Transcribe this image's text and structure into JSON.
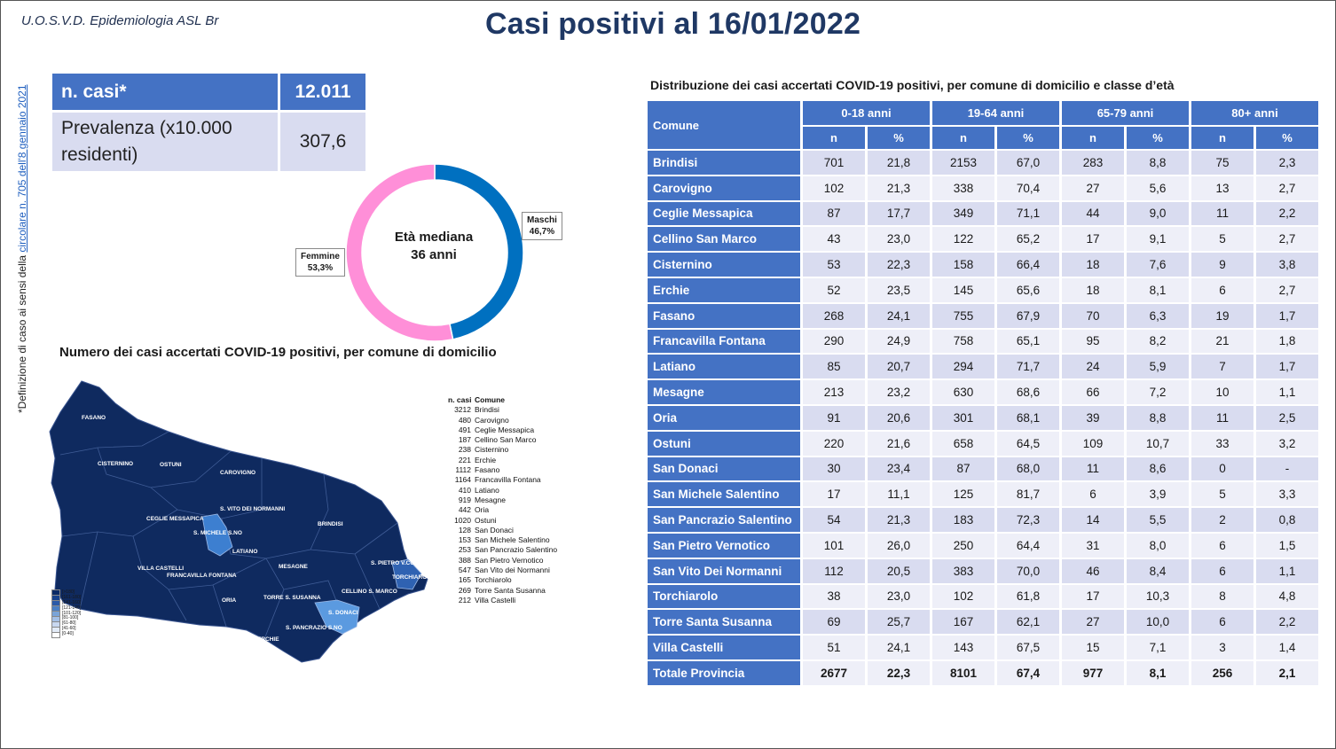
{
  "header": {
    "department": "U.O.S.V.D. Epidemiologia ASL Br",
    "title": "Casi positivi al 16/01/2022"
  },
  "side_note": {
    "prefix": "*Definizione di caso ai sensi della ",
    "link": "circolare n. 705 dell'8 gennaio 2021"
  },
  "kpi": {
    "cases_label": "n. casi*",
    "cases_value": "12.011",
    "prev_label": "Prevalenza (x10.000 residenti)",
    "prev_value": "307,6"
  },
  "donut": {
    "center_line1": "Età mediana",
    "center_line2": "36 anni",
    "slices": [
      {
        "label": "Maschi",
        "pct_text": "46,7%",
        "value": 46.7,
        "color": "#0070c0"
      },
      {
        "label": "Femmine",
        "pct_text": "53,3%",
        "value": 53.3,
        "color": "#ff8fd8"
      }
    ]
  },
  "map": {
    "title": "Numero dei casi accertati COVID-19 positivi, per comune di domicilio",
    "labels": [
      "FASANO",
      "CISTERNINO",
      "OSTUNI",
      "CAROVIGNO",
      "CEGLIE MESSAPICA",
      "S. VITO DEI NORMANNI",
      "S. MICHELE S.NO",
      "LATIANO",
      "BRINDISI",
      "VILLA CASTELLI",
      "FRANCAVILLA FONTANA",
      "MESAGNE",
      "S. PIETRO V.CO",
      "TORCHIAROLO",
      "ORIA",
      "TORRE S. SUSANNA",
      "CELLINO S. MARCO",
      "S. DONACI",
      "S. PANCRAZIO S.NO",
      "ERCHIE"
    ],
    "legend_header": {
      "n": "n. casi",
      "name": "Comune"
    },
    "legend": [
      {
        "n": "3212",
        "name": "Brindisi"
      },
      {
        "n": "480",
        "name": "Carovigno"
      },
      {
        "n": "491",
        "name": "Ceglie Messapica"
      },
      {
        "n": "187",
        "name": "Cellino San Marco"
      },
      {
        "n": "238",
        "name": "Cisternino"
      },
      {
        "n": "221",
        "name": "Erchie"
      },
      {
        "n": "1112",
        "name": "Fasano"
      },
      {
        "n": "1164",
        "name": "Francavilla Fontana"
      },
      {
        "n": "410",
        "name": "Latiano"
      },
      {
        "n": "919",
        "name": "Mesagne"
      },
      {
        "n": "442",
        "name": "Oria"
      },
      {
        "n": "1020",
        "name": "Ostuni"
      },
      {
        "n": "128",
        "name": "San Donaci"
      },
      {
        "n": "153",
        "name": "San Michele Salentino"
      },
      {
        "n": "253",
        "name": "San Pancrazio Salentino"
      },
      {
        "n": "388",
        "name": "San Pietro Vernotico"
      },
      {
        "n": "547",
        "name": "San Vito dei Normanni"
      },
      {
        "n": "165",
        "name": "Torchiarolo"
      },
      {
        "n": "269",
        "name": "Torre Santa Susanna"
      },
      {
        "n": "212",
        "name": "Villa Castelli"
      }
    ],
    "scale": [
      {
        "label": "[>180]",
        "color": "#0a2a66"
      },
      {
        "label": "[161-180]",
        "color": "#17428c"
      },
      {
        "label": "[141-160]",
        "color": "#2a5aa8"
      },
      {
        "label": "[121-140]",
        "color": "#4a7fc4"
      },
      {
        "label": "[101-120]",
        "color": "#7aa4d8"
      },
      {
        "label": "[81-100]",
        "color": "#a4c0e6"
      },
      {
        "label": "[61-80]",
        "color": "#c8d8f0"
      },
      {
        "label": "[41-60]",
        "color": "#e2ebf7"
      },
      {
        "label": "[0-40]",
        "color": "#ffffff"
      }
    ]
  },
  "table": {
    "caption": "Distribuzione dei casi accertati COVID-19 positivi, per comune di domicilio e classe d’età",
    "col_comune": "Comune",
    "groups": [
      "0-18 anni",
      "19-64 anni",
      "65-79 anni",
      "80+ anni"
    ],
    "sub": [
      "n",
      "%"
    ],
    "rows": [
      {
        "name": "Brindisi",
        "v": [
          "701",
          "21,8",
          "2153",
          "67,0",
          "283",
          "8,8",
          "75",
          "2,3"
        ]
      },
      {
        "name": "Carovigno",
        "v": [
          "102",
          "21,3",
          "338",
          "70,4",
          "27",
          "5,6",
          "13",
          "2,7"
        ]
      },
      {
        "name": "Ceglie Messapica",
        "v": [
          "87",
          "17,7",
          "349",
          "71,1",
          "44",
          "9,0",
          "11",
          "2,2"
        ]
      },
      {
        "name": "Cellino San Marco",
        "v": [
          "43",
          "23,0",
          "122",
          "65,2",
          "17",
          "9,1",
          "5",
          "2,7"
        ]
      },
      {
        "name": "Cisternino",
        "v": [
          "53",
          "22,3",
          "158",
          "66,4",
          "18",
          "7,6",
          "9",
          "3,8"
        ]
      },
      {
        "name": "Erchie",
        "v": [
          "52",
          "23,5",
          "145",
          "65,6",
          "18",
          "8,1",
          "6",
          "2,7"
        ]
      },
      {
        "name": "Fasano",
        "v": [
          "268",
          "24,1",
          "755",
          "67,9",
          "70",
          "6,3",
          "19",
          "1,7"
        ]
      },
      {
        "name": "Francavilla Fontana",
        "v": [
          "290",
          "24,9",
          "758",
          "65,1",
          "95",
          "8,2",
          "21",
          "1,8"
        ]
      },
      {
        "name": "Latiano",
        "v": [
          "85",
          "20,7",
          "294",
          "71,7",
          "24",
          "5,9",
          "7",
          "1,7"
        ]
      },
      {
        "name": "Mesagne",
        "v": [
          "213",
          "23,2",
          "630",
          "68,6",
          "66",
          "7,2",
          "10",
          "1,1"
        ]
      },
      {
        "name": "Oria",
        "v": [
          "91",
          "20,6",
          "301",
          "68,1",
          "39",
          "8,8",
          "11",
          "2,5"
        ]
      },
      {
        "name": "Ostuni",
        "v": [
          "220",
          "21,6",
          "658",
          "64,5",
          "109",
          "10,7",
          "33",
          "3,2"
        ]
      },
      {
        "name": "San Donaci",
        "v": [
          "30",
          "23,4",
          "87",
          "68,0",
          "11",
          "8,6",
          "0",
          "-"
        ]
      },
      {
        "name": "San Michele Salentino",
        "v": [
          "17",
          "11,1",
          "125",
          "81,7",
          "6",
          "3,9",
          "5",
          "3,3"
        ]
      },
      {
        "name": "San Pancrazio Salentino",
        "v": [
          "54",
          "21,3",
          "183",
          "72,3",
          "14",
          "5,5",
          "2",
          "0,8"
        ]
      },
      {
        "name": "San Pietro Vernotico",
        "v": [
          "101",
          "26,0",
          "250",
          "64,4",
          "31",
          "8,0",
          "6",
          "1,5"
        ]
      },
      {
        "name": "San Vito Dei Normanni",
        "v": [
          "112",
          "20,5",
          "383",
          "70,0",
          "46",
          "8,4",
          "6",
          "1,1"
        ]
      },
      {
        "name": "Torchiarolo",
        "v": [
          "38",
          "23,0",
          "102",
          "61,8",
          "17",
          "10,3",
          "8",
          "4,8"
        ]
      },
      {
        "name": "Torre Santa Susanna",
        "v": [
          "69",
          "25,7",
          "167",
          "62,1",
          "27",
          "10,0",
          "6",
          "2,2"
        ]
      },
      {
        "name": "Villa Castelli",
        "v": [
          "51",
          "24,1",
          "143",
          "67,5",
          "15",
          "7,1",
          "3",
          "1,4"
        ]
      }
    ],
    "total": {
      "name": "Totale Provincia",
      "v": [
        "2677",
        "22,3",
        "8101",
        "67,4",
        "977",
        "8,1",
        "256",
        "2,1"
      ]
    }
  }
}
